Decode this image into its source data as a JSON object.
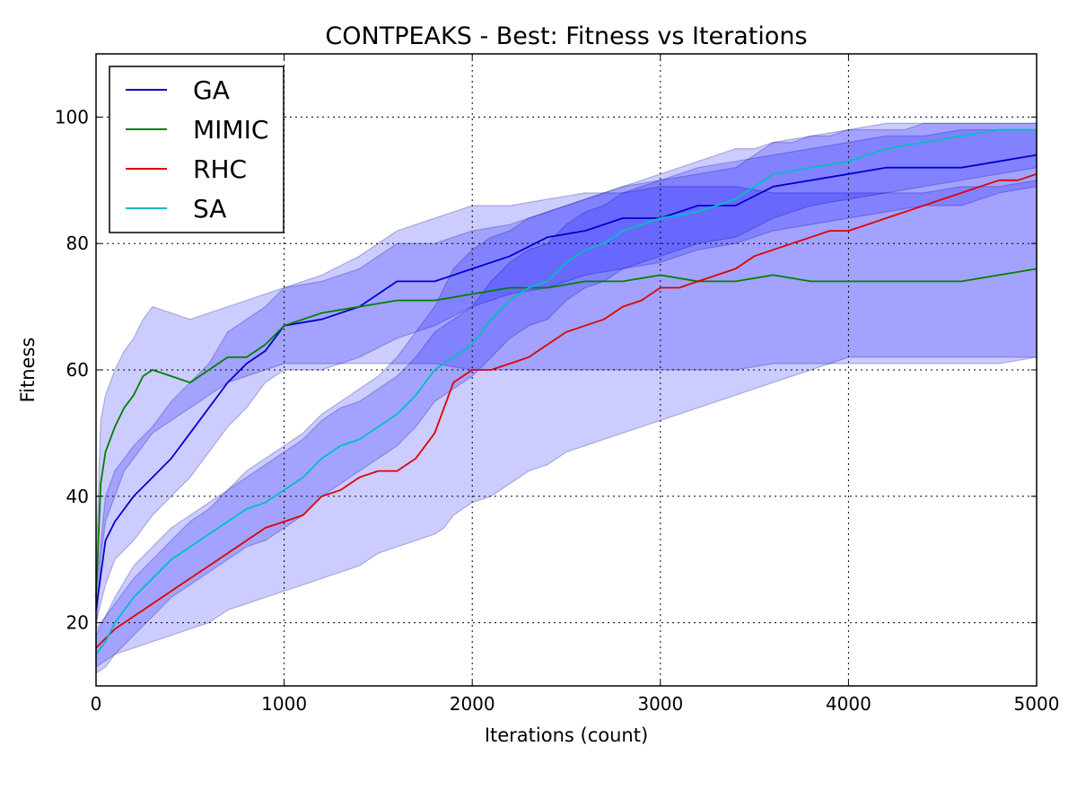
{
  "chart_data": {
    "type": "line",
    "title": "CONTPEAKS - Best: Fitness vs Iterations",
    "xlabel": "Iterations (count)",
    "ylabel": "Fitness",
    "xlim": [
      0,
      5000
    ],
    "ylim": [
      10,
      110
    ],
    "xticks": [
      "0",
      "1000",
      "2000",
      "3000",
      "4000",
      "5000"
    ],
    "yticks": [
      "20",
      "40",
      "60",
      "80",
      "100"
    ],
    "grid": true,
    "legend_position": "top-left",
    "series": [
      {
        "name": "GA",
        "color": "#0000cc",
        "x": [
          0,
          50,
          100,
          200,
          300,
          400,
          500,
          600,
          700,
          800,
          900,
          1000,
          1200,
          1400,
          1600,
          1800,
          2000,
          2200,
          2400,
          2600,
          2800,
          3000,
          3200,
          3400,
          3600,
          3800,
          4000,
          4200,
          4400,
          4600,
          4800,
          5000
        ],
        "values": [
          22,
          33,
          36,
          40,
          43,
          46,
          50,
          54,
          58,
          61,
          63,
          67,
          68,
          70,
          74,
          74,
          76,
          78,
          81,
          82,
          84,
          84,
          86,
          86,
          89,
          90,
          91,
          92,
          92,
          92,
          93,
          94
        ],
        "lower": [
          20,
          26,
          30,
          33,
          37,
          40,
          43,
          47,
          51,
          54,
          58,
          60,
          60,
          62,
          65,
          67,
          70,
          72,
          73,
          75,
          76,
          77,
          79,
          80,
          82,
          83,
          84,
          85,
          86,
          86,
          88,
          89
        ],
        "upper": [
          25,
          40,
          44,
          48,
          51,
          55,
          58,
          61,
          66,
          68,
          70,
          73,
          74,
          76,
          80,
          80,
          82,
          83,
          85,
          87,
          89,
          90,
          92,
          93,
          94,
          95,
          96,
          97,
          97,
          98,
          98,
          98
        ]
      },
      {
        "name": "MIMIC",
        "color": "#007f00",
        "x": [
          0,
          25,
          50,
          100,
          150,
          200,
          250,
          300,
          400,
          500,
          600,
          700,
          800,
          900,
          1000,
          1200,
          1400,
          1600,
          1800,
          2000,
          2200,
          2400,
          2600,
          2800,
          3000,
          3200,
          3400,
          3600,
          3800,
          4000,
          4200,
          4400,
          4600,
          4800,
          5000
        ],
        "values": [
          24,
          42,
          47,
          51,
          54,
          56,
          59,
          60,
          59,
          58,
          60,
          62,
          62,
          64,
          67,
          69,
          70,
          71,
          71,
          72,
          73,
          73,
          74,
          74,
          75,
          74,
          74,
          75,
          74,
          74,
          74,
          74,
          74,
          75,
          76
        ],
        "lower": [
          18,
          30,
          36,
          40,
          44,
          46,
          48,
          50,
          52,
          54,
          56,
          58,
          59,
          60,
          61,
          61,
          61,
          61,
          61,
          60,
          60,
          60,
          60,
          60,
          60,
          60,
          60,
          61,
          61,
          61,
          61,
          61,
          61,
          61,
          62
        ],
        "upper": [
          30,
          52,
          56,
          60,
          63,
          65,
          68,
          70,
          69,
          68,
          69,
          70,
          71,
          72,
          73,
          75,
          78,
          82,
          84,
          86,
          86,
          87,
          88,
          88,
          89,
          89,
          89,
          88,
          88,
          88,
          88,
          88,
          89,
          89,
          90
        ]
      },
      {
        "name": "RHC",
        "color": "#e00000",
        "x": [
          0,
          100,
          200,
          300,
          400,
          500,
          600,
          700,
          800,
          900,
          1000,
          1100,
          1200,
          1300,
          1400,
          1500,
          1600,
          1700,
          1800,
          1850,
          1900,
          2000,
          2100,
          2200,
          2300,
          2400,
          2500,
          2600,
          2700,
          2800,
          2900,
          3000,
          3100,
          3200,
          3300,
          3400,
          3500,
          3600,
          3700,
          3800,
          3900,
          4000,
          4100,
          4200,
          4300,
          4400,
          4500,
          4600,
          4700,
          4800,
          4900,
          5000
        ],
        "values": [
          16,
          19,
          21,
          23,
          25,
          27,
          29,
          31,
          33,
          35,
          36,
          37,
          40,
          41,
          43,
          44,
          44,
          46,
          50,
          54,
          58,
          60,
          60,
          61,
          62,
          64,
          66,
          67,
          68,
          70,
          71,
          73,
          73,
          74,
          75,
          76,
          78,
          79,
          80,
          81,
          82,
          82,
          83,
          84,
          85,
          86,
          87,
          88,
          89,
          90,
          90,
          91
        ],
        "lower": [
          13,
          15,
          16,
          17,
          18,
          19,
          20,
          22,
          23,
          24,
          25,
          26,
          27,
          28,
          29,
          31,
          32,
          33,
          34,
          35,
          37,
          39,
          40,
          42,
          44,
          45,
          47,
          48,
          49,
          50,
          51,
          52,
          53,
          54,
          55,
          56,
          57,
          58,
          59,
          60,
          61,
          62,
          62,
          62,
          62,
          62,
          62,
          62,
          62,
          62,
          62,
          62
        ],
        "upper": [
          19,
          23,
          27,
          30,
          33,
          36,
          38,
          41,
          44,
          46,
          48,
          50,
          53,
          55,
          57,
          59,
          62,
          66,
          70,
          73,
          76,
          79,
          81,
          82,
          84,
          85,
          86,
          87,
          88,
          89,
          90,
          91,
          92,
          93,
          94,
          95,
          95,
          96,
          96,
          97,
          97,
          98,
          98,
          98,
          98,
          99,
          99,
          99,
          99,
          99,
          99,
          99
        ]
      },
      {
        "name": "SA",
        "color": "#00bfbf",
        "x": [
          0,
          50,
          100,
          200,
          300,
          400,
          500,
          600,
          700,
          800,
          900,
          1000,
          1100,
          1200,
          1300,
          1400,
          1500,
          1600,
          1700,
          1800,
          1900,
          2000,
          2100,
          2200,
          2300,
          2400,
          2500,
          2600,
          2700,
          2800,
          2900,
          3000,
          3200,
          3400,
          3600,
          3800,
          4000,
          4200,
          4400,
          4600,
          4800,
          5000
        ],
        "values": [
          15,
          17,
          20,
          24,
          27,
          30,
          32,
          34,
          36,
          38,
          39,
          41,
          43,
          46,
          48,
          49,
          51,
          53,
          56,
          60,
          62,
          64,
          68,
          71,
          73,
          74,
          77,
          79,
          80,
          82,
          83,
          84,
          85,
          87,
          91,
          92,
          93,
          95,
          96,
          97,
          98,
          98
        ],
        "lower": [
          12,
          13,
          15,
          18,
          21,
          24,
          26,
          28,
          30,
          32,
          33,
          35,
          37,
          40,
          42,
          44,
          46,
          48,
          51,
          55,
          57,
          59,
          62,
          65,
          67,
          68,
          71,
          73,
          74,
          76,
          77,
          78,
          80,
          81,
          84,
          86,
          87,
          88,
          89,
          90,
          91,
          92
        ],
        "upper": [
          18,
          21,
          24,
          29,
          32,
          35,
          37,
          39,
          41,
          43,
          45,
          47,
          49,
          52,
          54,
          55,
          57,
          59,
          62,
          66,
          68,
          70,
          74,
          77,
          79,
          80,
          83,
          85,
          86,
          88,
          89,
          90,
          91,
          92,
          96,
          97,
          98,
          99,
          99,
          99,
          99,
          99
        ]
      }
    ]
  }
}
